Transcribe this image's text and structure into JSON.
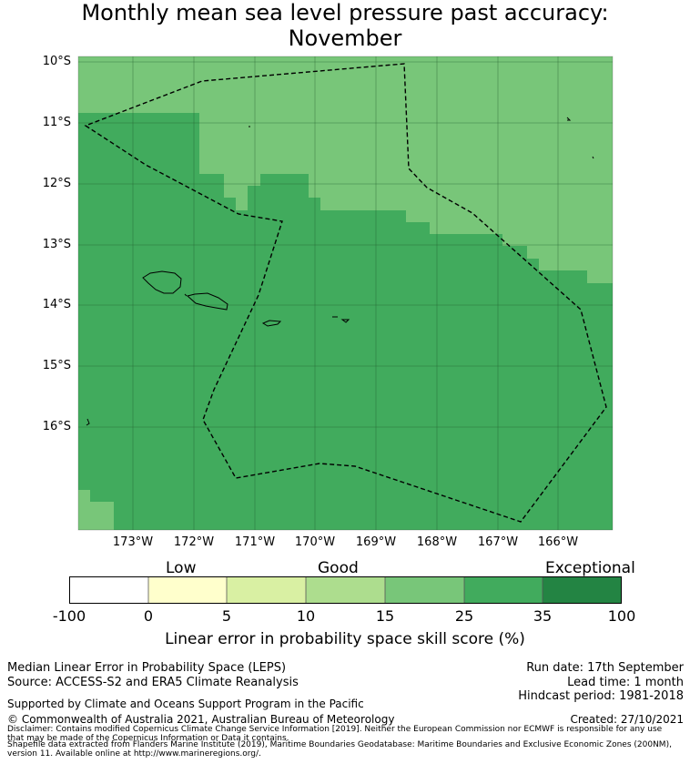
{
  "title": {
    "line1": "Monthly mean sea level pressure past accuracy:",
    "line2": "November"
  },
  "map": {
    "lat_labels": [
      "10°S",
      "11°S",
      "12°S",
      "13°S",
      "14°S",
      "15°S",
      "16°S"
    ],
    "lon_labels": [
      "173°W",
      "172°W",
      "171°W",
      "170°W",
      "169°W",
      "168°W",
      "167°W",
      "166°W"
    ],
    "colors": {
      "cat_15_25": "#78c679",
      "cat_25_35": "#41ab5d"
    }
  },
  "colorbar": {
    "categories": [
      "Low",
      "Good",
      "Exceptional"
    ],
    "ticks": [
      "-100",
      "0",
      "5",
      "10",
      "15",
      "25",
      "35",
      "100"
    ],
    "colors": [
      "#ffffff",
      "#ffffcc",
      "#d9f0a3",
      "#addd8e",
      "#78c679",
      "#41ab5d",
      "#238443"
    ],
    "label": "Linear error in probability space skill score (%)"
  },
  "footer": {
    "method": "Median Linear Error in Probability Space (LEPS)",
    "source": "Source: ACCESS-S2 and ERA5 Climate Reanalysis",
    "run_date": "Run date: 17th September",
    "lead_time": "Lead time: 1 month",
    "hindcast": "Hindcast period: 1981-2018",
    "support": "Supported by Climate and Oceans Support Program in the Pacific",
    "copyright": "© Commonwealth of Australia 2021, Australian Bureau of Meteorology",
    "created": "Created: 27/10/2021",
    "disclaimer1": "Disclaimer: Contains modified Copernicus Climate Change Service Information [2019]. Neither the European Commission nor ECMWF is responsible for any use",
    "disclaimer2": "that may be made of the Copernicus Information or Data it contains.",
    "shapefile1": "Shapefile data extracted from Flanders Marine Institute (2019), Maritime Boundaries Geodatabase: Maritime Boundaries and Exclusive Economic Zones (200NM),",
    "shapefile2": "version 11. Available online at http://www.marineregions.org/."
  }
}
